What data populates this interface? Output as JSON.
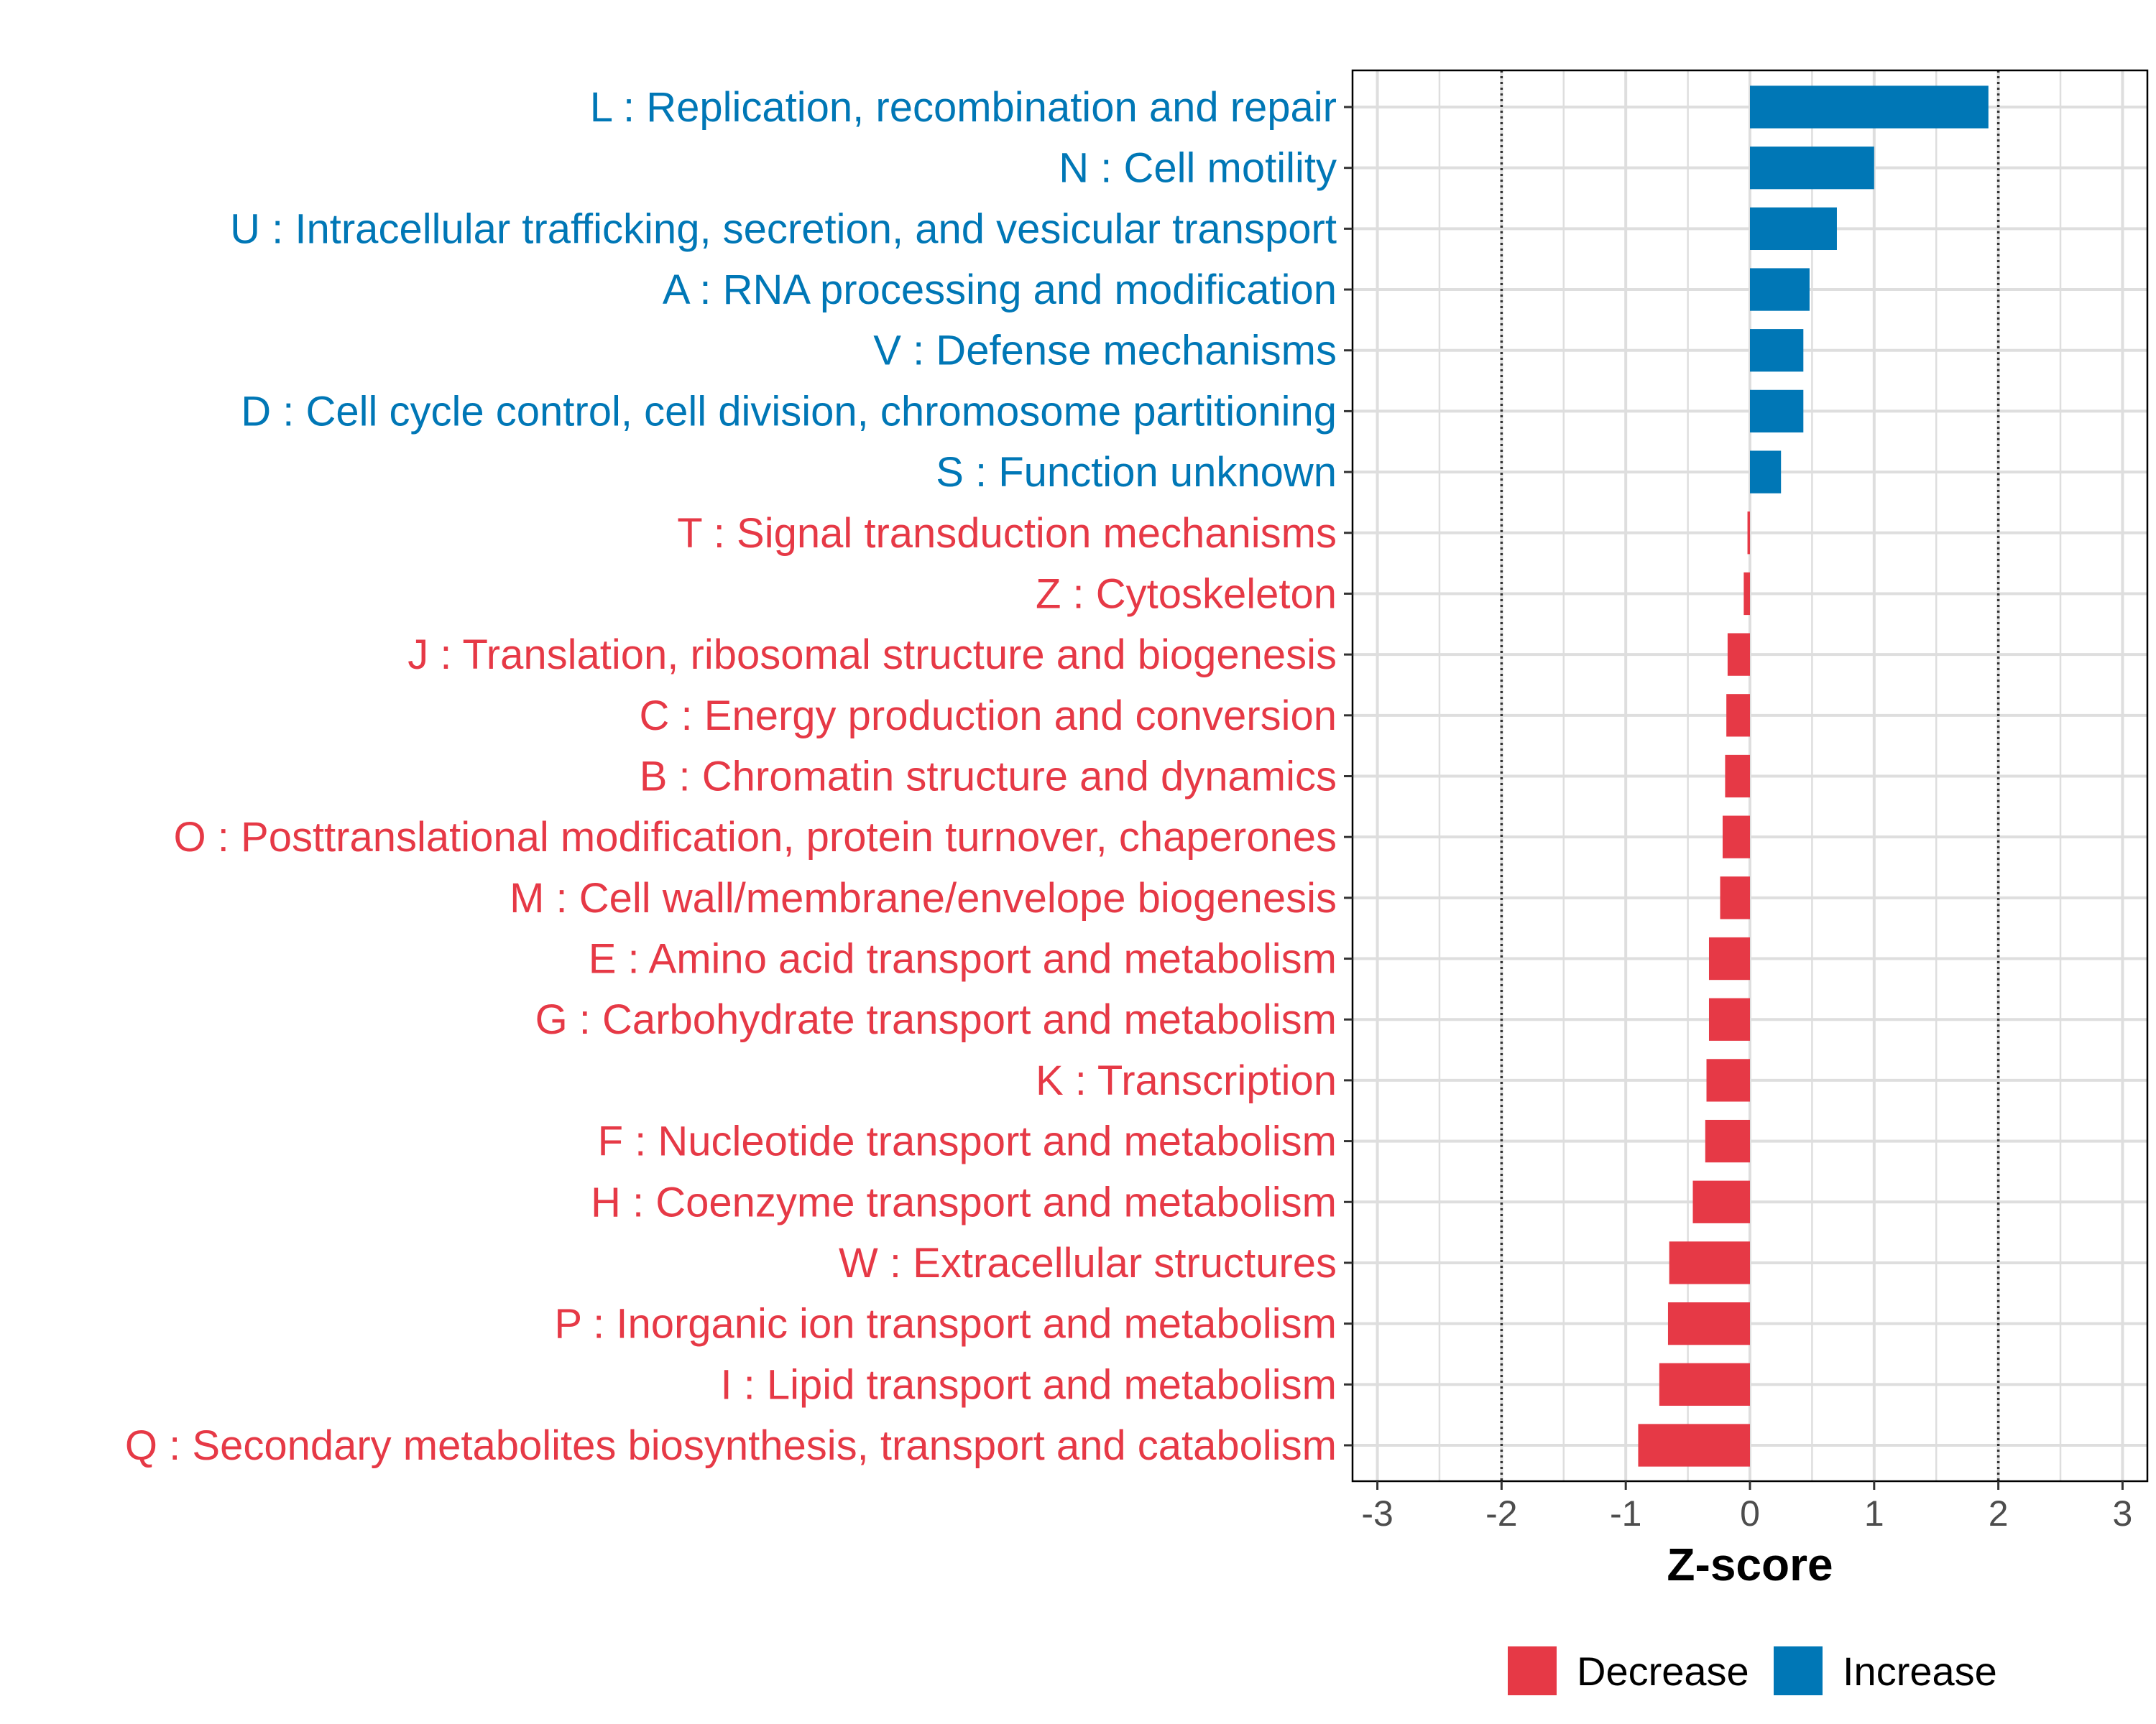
{
  "chart_data": {
    "type": "bar",
    "orientation": "horizontal",
    "title": "",
    "xlabel": "Z-score",
    "ylabel": "",
    "xlim": [
      -3.2,
      3.2
    ],
    "x_ticks": [
      -3,
      -2,
      -1,
      0,
      1,
      2,
      3
    ],
    "x_tick_labels": [
      "-3",
      "-2",
      "-1",
      "0",
      "1",
      "2",
      "3"
    ],
    "reference_lines": [
      -2,
      2
    ],
    "grid": true,
    "legend_position": "bottom",
    "colors": {
      "Decrease": "#e63946",
      "Increase": "#0077b6"
    },
    "categories": [
      "L : Replication, recombination and repair",
      "N : Cell motility",
      "U : Intracellular trafficking, secretion, and vesicular transport",
      "A : RNA processing and modification",
      "V : Defense mechanisms",
      "D : Cell cycle control, cell division, chromosome partitioning",
      "S : Function unknown",
      "T : Signal transduction mechanisms",
      "Z : Cytoskeleton",
      "J : Translation, ribosomal structure and biogenesis",
      "C : Energy production and conversion",
      "B : Chromatin structure and dynamics",
      "O : Posttranslational modification, protein turnover, chaperones",
      "M : Cell wall/membrane/envelope biogenesis",
      "E : Amino acid transport and metabolism",
      "G : Carbohydrate transport and metabolism",
      "K : Transcription",
      "F : Nucleotide transport and metabolism",
      "H : Coenzyme transport and metabolism",
      "W : Extracellular structures",
      "P : Inorganic ion transport and metabolism",
      "I : Lipid transport and metabolism",
      "Q : Secondary metabolites biosynthesis, transport and catabolism"
    ],
    "values": [
      1.92,
      1.0,
      0.7,
      0.48,
      0.43,
      0.43,
      0.25,
      -0.02,
      -0.05,
      -0.18,
      -0.19,
      -0.2,
      -0.22,
      -0.24,
      -0.33,
      -0.33,
      -0.35,
      -0.36,
      -0.46,
      -0.65,
      -0.66,
      -0.73,
      -0.9
    ],
    "groups": [
      "Increase",
      "Increase",
      "Increase",
      "Increase",
      "Increase",
      "Increase",
      "Increase",
      "Decrease",
      "Decrease",
      "Decrease",
      "Decrease",
      "Decrease",
      "Decrease",
      "Decrease",
      "Decrease",
      "Decrease",
      "Decrease",
      "Decrease",
      "Decrease",
      "Decrease",
      "Decrease",
      "Decrease",
      "Decrease"
    ],
    "legend": [
      "Decrease",
      "Increase"
    ]
  }
}
